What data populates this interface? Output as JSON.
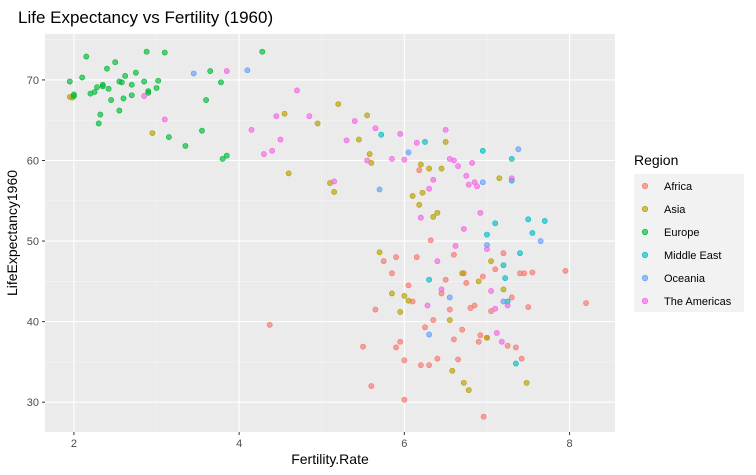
{
  "chart_data": {
    "type": "scatter",
    "title": "Life Expectancy vs Fertility (1960)",
    "xlabel": "Fertility.Rate",
    "ylabel": "LifeExpectancy1960",
    "xlim": [
      1.65,
      8.55
    ],
    "ylim": [
      26.3,
      75.7
    ],
    "x_ticks": [
      2,
      4,
      6,
      8
    ],
    "y_ticks": [
      30,
      40,
      50,
      60,
      70
    ],
    "grid": true,
    "legend": {
      "title": "Region",
      "placement": "right"
    },
    "series": [
      {
        "name": "Africa",
        "color": "#F8766D",
        "points": [
          [
            4.37,
            39.6
          ],
          [
            5.5,
            36.9
          ],
          [
            5.6,
            32.0
          ],
          [
            5.65,
            41.5
          ],
          [
            5.75,
            47.5
          ],
          [
            5.85,
            46.0
          ],
          [
            5.9,
            36.8
          ],
          [
            5.95,
            37.5
          ],
          [
            6.0,
            35.2
          ],
          [
            6.0,
            30.3
          ],
          [
            6.05,
            44.5
          ],
          [
            6.1,
            42.5
          ],
          [
            6.15,
            48.0
          ],
          [
            6.18,
            58.8
          ],
          [
            6.2,
            34.6
          ],
          [
            6.25,
            39.3
          ],
          [
            6.3,
            34.6
          ],
          [
            6.32,
            50.1
          ],
          [
            6.35,
            40.2
          ],
          [
            6.4,
            35.4
          ],
          [
            6.45,
            43.5
          ],
          [
            6.5,
            45.2
          ],
          [
            6.55,
            41.5
          ],
          [
            6.6,
            37.8
          ],
          [
            6.65,
            35.3
          ],
          [
            6.7,
            39.0
          ],
          [
            6.72,
            46.0
          ],
          [
            6.75,
            44.8
          ],
          [
            6.8,
            41.7
          ],
          [
            6.85,
            42.0
          ],
          [
            6.9,
            37.5
          ],
          [
            6.92,
            38.3
          ],
          [
            6.95,
            45.6
          ],
          [
            6.96,
            28.2
          ],
          [
            7.0,
            38.0
          ],
          [
            7.05,
            41.3
          ],
          [
            7.1,
            46.5
          ],
          [
            7.2,
            48.5
          ],
          [
            7.25,
            37.0
          ],
          [
            7.3,
            43.0
          ],
          [
            7.35,
            36.8
          ],
          [
            7.4,
            46.0
          ],
          [
            7.42,
            35.4
          ],
          [
            7.45,
            46.0
          ],
          [
            7.5,
            41.8
          ],
          [
            7.55,
            46.1
          ],
          [
            7.95,
            46.3
          ],
          [
            8.2,
            42.3
          ],
          [
            5.9,
            48.0
          ],
          [
            6.6,
            48.3
          ]
        ]
      },
      {
        "name": "Asia",
        "color": "#B79F00",
        "points": [
          [
            1.95,
            67.9
          ],
          [
            1.98,
            67.8
          ],
          [
            2.95,
            63.4
          ],
          [
            4.55,
            65.8
          ],
          [
            4.6,
            58.4
          ],
          [
            4.95,
            64.6
          ],
          [
            5.1,
            57.2
          ],
          [
            5.15,
            56.1
          ],
          [
            5.2,
            67.0
          ],
          [
            5.45,
            62.6
          ],
          [
            5.55,
            65.6
          ],
          [
            5.58,
            60.8
          ],
          [
            5.6,
            59.7
          ],
          [
            5.7,
            48.6
          ],
          [
            5.85,
            43.5
          ],
          [
            5.95,
            41.2
          ],
          [
            6.05,
            42.6
          ],
          [
            6.1,
            55.6
          ],
          [
            6.18,
            54.5
          ],
          [
            6.2,
            59.5
          ],
          [
            6.22,
            56.0
          ],
          [
            6.3,
            59.0
          ],
          [
            6.35,
            53.0
          ],
          [
            6.4,
            53.5
          ],
          [
            6.45,
            59.0
          ],
          [
            6.5,
            62.3
          ],
          [
            6.55,
            40.2
          ],
          [
            6.58,
            33.9
          ],
          [
            6.7,
            46.0
          ],
          [
            6.72,
            32.4
          ],
          [
            6.78,
            31.5
          ],
          [
            6.9,
            45.0
          ],
          [
            7.0,
            38.0
          ],
          [
            7.05,
            47.5
          ],
          [
            7.15,
            57.8
          ],
          [
            7.2,
            44.0
          ],
          [
            7.48,
            32.4
          ],
          [
            6.0,
            43.2
          ]
        ]
      },
      {
        "name": "Europe",
        "color": "#00BA38",
        "points": [
          [
            1.95,
            69.8
          ],
          [
            2.0,
            68.2
          ],
          [
            2.1,
            70.3
          ],
          [
            2.15,
            72.9
          ],
          [
            2.2,
            68.3
          ],
          [
            2.25,
            68.5
          ],
          [
            2.28,
            69.1
          ],
          [
            2.3,
            64.6
          ],
          [
            2.32,
            65.7
          ],
          [
            2.35,
            69.2
          ],
          [
            2.4,
            71.4
          ],
          [
            2.42,
            68.9
          ],
          [
            2.45,
            67.5
          ],
          [
            2.5,
            72.2
          ],
          [
            2.55,
            66.2
          ],
          [
            2.58,
            69.7
          ],
          [
            2.6,
            67.7
          ],
          [
            2.62,
            70.5
          ],
          [
            2.7,
            69.4
          ],
          [
            2.75,
            70.9
          ],
          [
            2.85,
            69.8
          ],
          [
            2.88,
            73.5
          ],
          [
            2.9,
            68.6
          ],
          [
            3.0,
            69.0
          ],
          [
            3.02,
            69.9
          ],
          [
            3.1,
            73.4
          ],
          [
            3.15,
            62.9
          ],
          [
            3.35,
            61.8
          ],
          [
            3.55,
            63.7
          ],
          [
            3.6,
            67.5
          ],
          [
            3.65,
            71.1
          ],
          [
            3.78,
            69.7
          ],
          [
            3.8,
            60.2
          ],
          [
            3.85,
            60.6
          ],
          [
            4.28,
            73.5
          ],
          [
            2.55,
            69.8
          ],
          [
            2.35,
            69.4
          ],
          [
            2.0,
            68.0
          ],
          [
            2.9,
            68.4
          ],
          [
            2.7,
            68.1
          ]
        ]
      },
      {
        "name": "Middle East",
        "color": "#00BFC4",
        "points": [
          [
            5.72,
            63.2
          ],
          [
            6.25,
            62.3
          ],
          [
            6.3,
            45.2
          ],
          [
            6.95,
            61.2
          ],
          [
            7.0,
            50.8
          ],
          [
            7.1,
            52.2
          ],
          [
            7.2,
            47.0
          ],
          [
            7.22,
            45.4
          ],
          [
            7.3,
            60.2
          ],
          [
            7.35,
            34.8
          ],
          [
            7.4,
            48.5
          ],
          [
            7.5,
            52.7
          ],
          [
            7.55,
            51.0
          ],
          [
            7.7,
            52.5
          ],
          [
            7.3,
            57.5
          ],
          [
            7.25,
            42.5
          ]
        ]
      },
      {
        "name": "Oceania",
        "color": "#619CFF",
        "points": [
          [
            3.45,
            70.8
          ],
          [
            4.1,
            71.2
          ],
          [
            5.7,
            56.4
          ],
          [
            6.05,
            61.0
          ],
          [
            6.3,
            38.4
          ],
          [
            6.55,
            43.0
          ],
          [
            6.95,
            57.3
          ],
          [
            7.0,
            49.5
          ],
          [
            7.2,
            42.5
          ],
          [
            7.38,
            61.4
          ],
          [
            7.65,
            50.0
          ]
        ]
      },
      {
        "name": "The Americas",
        "color": "#F564E3",
        "points": [
          [
            2.85,
            68.0
          ],
          [
            3.1,
            65.1
          ],
          [
            3.85,
            71.1
          ],
          [
            4.15,
            63.8
          ],
          [
            4.3,
            60.8
          ],
          [
            4.4,
            61.2
          ],
          [
            4.45,
            65.5
          ],
          [
            4.5,
            62.6
          ],
          [
            4.7,
            68.7
          ],
          [
            4.85,
            65.5
          ],
          [
            5.15,
            57.4
          ],
          [
            5.3,
            62.5
          ],
          [
            5.4,
            64.9
          ],
          [
            5.55,
            60.0
          ],
          [
            5.65,
            64.0
          ],
          [
            5.85,
            60.2
          ],
          [
            5.95,
            63.3
          ],
          [
            6.15,
            62.2
          ],
          [
            6.2,
            52.9
          ],
          [
            6.3,
            56.5
          ],
          [
            6.35,
            57.6
          ],
          [
            6.4,
            47.5
          ],
          [
            6.45,
            44.0
          ],
          [
            6.5,
            63.8
          ],
          [
            6.55,
            60.2
          ],
          [
            6.6,
            60.0
          ],
          [
            6.62,
            49.4
          ],
          [
            6.65,
            59.3
          ],
          [
            6.72,
            51.5
          ],
          [
            6.75,
            58.1
          ],
          [
            6.78,
            57.0
          ],
          [
            6.82,
            59.7
          ],
          [
            6.85,
            57.3
          ],
          [
            6.88,
            56.8
          ],
          [
            6.92,
            53.5
          ],
          [
            7.0,
            49.0
          ],
          [
            7.05,
            43.8
          ],
          [
            7.1,
            41.6
          ],
          [
            7.12,
            38.6
          ],
          [
            7.18,
            37.5
          ],
          [
            7.25,
            42.0
          ],
          [
            7.3,
            57.8
          ],
          [
            6.28,
            42.0
          ],
          [
            6.0,
            60.1
          ]
        ]
      }
    ]
  }
}
